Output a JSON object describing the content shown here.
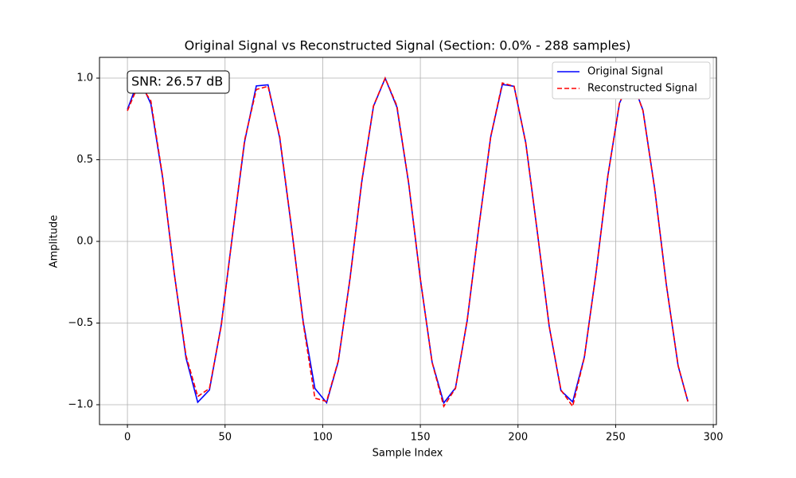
{
  "chart_data": {
    "type": "line",
    "title": "Original Signal vs Reconstructed Signal (Section: 0.0% - 288 samples)",
    "x_label": "Sample Index",
    "y_label": "Amplitude",
    "annotation": "SNR: 26.57 dB",
    "legend": "upper right",
    "grid": true,
    "xlim": [
      -14.3,
      301.6
    ],
    "ylim": [
      -1.122,
      1.127
    ],
    "xticks": [
      0,
      50,
      100,
      150,
      200,
      250,
      300
    ],
    "yticks": [
      {
        "value": -1,
        "label": "−1.0"
      },
      {
        "value": -0.5,
        "label": "−0.5"
      },
      {
        "value": 0,
        "label": "0.0"
      },
      0.5,
      {
        "value": 1,
        "label": "1.0"
      }
    ],
    "x": [
      0,
      6,
      12,
      18,
      24,
      30,
      36,
      42,
      48,
      54,
      60,
      66,
      72,
      78,
      84,
      90,
      96,
      102,
      108,
      114,
      120,
      126,
      132,
      138,
      144,
      150,
      156,
      162,
      168,
      174,
      180,
      186,
      192,
      198,
      204,
      210,
      216,
      222,
      228,
      234,
      240,
      246,
      252,
      258,
      264,
      270,
      276,
      282,
      287
    ],
    "series": [
      {
        "name": "Original Signal",
        "color": "#0000ff",
        "dash": "solid",
        "values": [
          0.808,
          0.9995,
          0.842,
          0.392,
          -0.197,
          -0.714,
          -0.985,
          -0.91,
          -0.515,
          0.057,
          0.61,
          0.952,
          0.959,
          0.632,
          0.085,
          -0.491,
          -0.9,
          -0.988,
          -0.734,
          -0.225,
          0.364,
          0.827,
          0.999,
          0.822,
          0.356,
          -0.231,
          -0.738,
          -0.989,
          -0.897,
          -0.484,
          0.093,
          0.638,
          0.961,
          0.95,
          0.603,
          0.048,
          -0.522,
          -0.914,
          -0.983,
          -0.708,
          -0.189,
          0.4,
          0.847,
          0.998,
          0.803,
          0.323,
          -0.267,
          -0.762,
          -0.98
        ]
      },
      {
        "name": "Reconstructed Signal",
        "color": "#ff0000",
        "dash": "dashed",
        "values": [
          0.8,
          0.97,
          0.86,
          0.4,
          -0.2,
          -0.7,
          -0.95,
          -0.9,
          -0.52,
          0.06,
          0.62,
          0.93,
          0.95,
          0.64,
          0.09,
          -0.5,
          -0.96,
          -0.98,
          -0.73,
          -0.23,
          0.37,
          0.83,
          1.0,
          0.83,
          0.36,
          -0.23,
          -0.74,
          -1.01,
          -0.9,
          -0.48,
          0.09,
          0.64,
          0.97,
          0.95,
          0.6,
          0.05,
          -0.52,
          -0.91,
          -1.01,
          -0.71,
          -0.19,
          0.4,
          0.85,
          1.0,
          0.8,
          0.32,
          -0.27,
          -0.76,
          -0.98
        ]
      }
    ]
  }
}
